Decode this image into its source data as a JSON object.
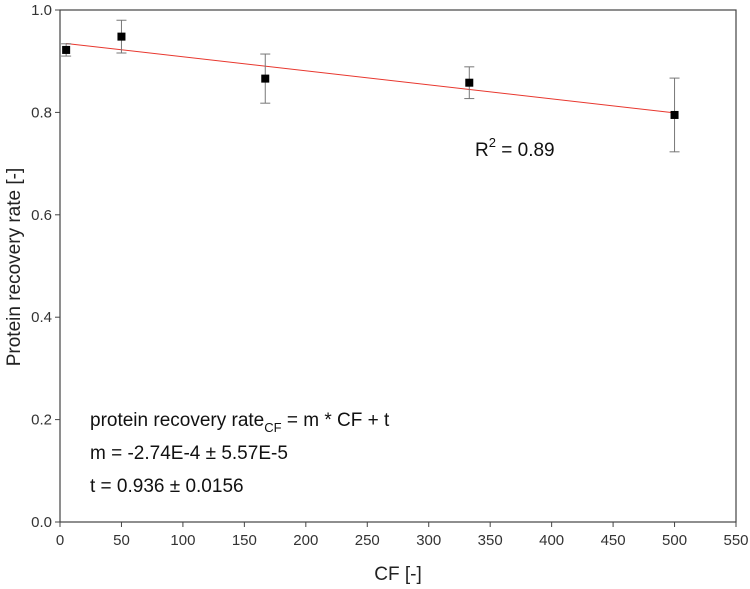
{
  "chart_data": {
    "type": "scatter",
    "title": "",
    "xlabel": "CF [-]",
    "ylabel": "Protein recovery rate [-]",
    "xlim": [
      0,
      550
    ],
    "ylim": [
      0.0,
      1.0
    ],
    "x_ticks": [
      "0",
      "50",
      "100",
      "150",
      "200",
      "250",
      "300",
      "350",
      "400",
      "450",
      "500",
      "550"
    ],
    "y_ticks": [
      "0.0",
      "0.2",
      "0.4",
      "0.6",
      "0.8",
      "1.0"
    ],
    "grid": false,
    "legend": "none",
    "series": [
      {
        "x": [
          5,
          50,
          167,
          333,
          500
        ],
        "y": [
          0.922,
          0.948,
          0.866,
          0.858,
          0.795
        ],
        "y_err": [
          0.012,
          0.032,
          0.048,
          0.031,
          0.072
        ],
        "marker": "square",
        "color": "#000000"
      }
    ],
    "fit_line": {
      "slope": -0.000274,
      "intercept": 0.936,
      "x_range": [
        5,
        500
      ],
      "color": "#e8372e"
    },
    "annotations": {
      "r2_label": "R",
      "r2_sup": "2",
      "r2_value": " = 0.89",
      "equation_lhs": "protein recovery rate",
      "equation_sub": "CF",
      "equation_rhs": " = m * CF + t",
      "m_line": "m = -2.74E-4 ± 5.57E-5",
      "t_line": "t = 0.936 ± 0.0156"
    }
  }
}
